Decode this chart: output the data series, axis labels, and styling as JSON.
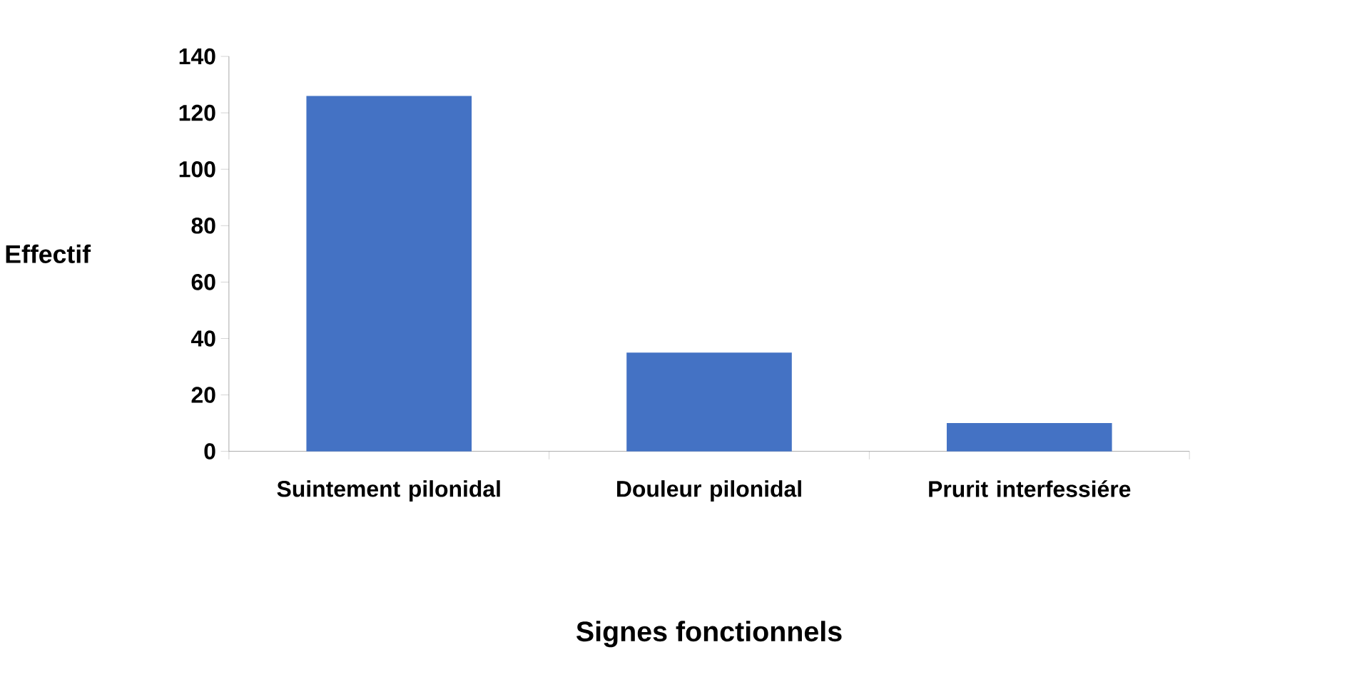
{
  "chart_data": {
    "type": "bar",
    "xlabel": "Signes fonctionnels",
    "ylabel": "Effectif",
    "categories": [
      "Suintement pilonidal",
      "Douleur pilonidal",
      "Prurit interfessiére"
    ],
    "values": [
      126,
      35,
      10
    ],
    "color": "#4472c4",
    "ylim": [
      0,
      140
    ],
    "yticks": [
      0,
      20,
      40,
      60,
      80,
      100,
      120,
      140
    ]
  }
}
